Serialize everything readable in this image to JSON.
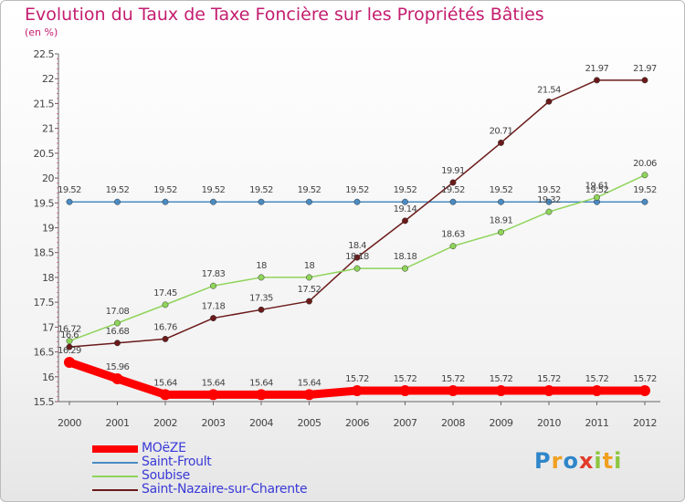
{
  "title": "Evolution du Taux de Taxe Foncière sur les Propriétés Bâties",
  "unit_label": "(en %)",
  "logo": {
    "text": "Proxiti",
    "letters": [
      {
        "ch": "P",
        "color": "#2f86c9"
      },
      {
        "ch": "r",
        "color": "#f0a020"
      },
      {
        "ch": "o",
        "color": "#2f86c9"
      },
      {
        "ch": "x",
        "color": "#e23b2a"
      },
      {
        "ch": "i",
        "color": "#8cc63f"
      },
      {
        "ch": "t",
        "color": "#f0a020"
      },
      {
        "ch": "i",
        "color": "#8cc63f"
      }
    ]
  },
  "chart_data": {
    "type": "line",
    "x": [
      "2000",
      "2001",
      "2002",
      "2003",
      "2004",
      "2005",
      "2006",
      "2007",
      "2008",
      "2009",
      "2010",
      "2011",
      "2012"
    ],
    "ylim": [
      15.5,
      22.5
    ],
    "yticks": [
      "15.5",
      "16",
      "16.5",
      "17",
      "17.5",
      "18",
      "18.5",
      "19",
      "19.5",
      "20",
      "20.5",
      "21",
      "21.5",
      "22",
      "22.5"
    ],
    "grid": false,
    "legend_position": "bottom-left",
    "series": [
      {
        "name": "MOëZE",
        "color": "#ff0000",
        "values": [
          16.29,
          15.96,
          15.64,
          15.64,
          15.64,
          15.64,
          15.72,
          15.72,
          15.72,
          15.72,
          15.72,
          15.72,
          15.72
        ],
        "labels": [
          "16.29",
          "15.96",
          "15.64",
          "15.64",
          "15.64",
          "15.64",
          "15.72",
          "15.72",
          "15.72",
          "15.72",
          "15.72",
          "15.72",
          "15.72"
        ]
      },
      {
        "name": "Saint-Froult",
        "color": "#4a8bc2",
        "values": [
          19.52,
          19.52,
          19.52,
          19.52,
          19.52,
          19.52,
          19.52,
          19.52,
          19.52,
          19.52,
          19.52,
          19.52,
          19.52
        ],
        "labels": [
          "19.52",
          "19.52",
          "19.52",
          "19.52",
          "19.52",
          "19.52",
          "19.52",
          "19.52",
          "19.52",
          "19.52",
          "19.52",
          "19.52",
          "19.52"
        ]
      },
      {
        "name": "Soubise",
        "color": "#8fd45a",
        "values": [
          16.72,
          17.08,
          17.45,
          17.83,
          18,
          18,
          18.18,
          18.18,
          18.63,
          18.91,
          19.32,
          19.61,
          20.06
        ],
        "labels": [
          "16.72",
          "17.08",
          "17.45",
          "17.83",
          "18",
          "18",
          "18.18",
          "18.18",
          "18.63",
          "18.91",
          "19.32",
          "19.61",
          "20.06"
        ]
      },
      {
        "name": "Saint-Nazaire-sur-Charente",
        "color": "#6b1a1a",
        "values": [
          16.6,
          16.68,
          16.76,
          17.18,
          17.35,
          17.52,
          18.4,
          19.14,
          19.91,
          20.71,
          21.54,
          21.97,
          21.97
        ],
        "labels": [
          "16.6",
          "16.68",
          "16.76",
          "17.18",
          "17.35",
          "17.52",
          "18.4",
          "19.14",
          "19.91",
          "20.71",
          "21.54",
          "21.97",
          "21.97"
        ]
      }
    ]
  }
}
